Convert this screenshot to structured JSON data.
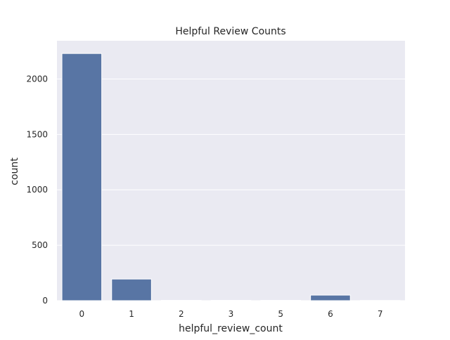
{
  "chart_data": {
    "type": "bar",
    "title": "Helpful Review Counts",
    "xlabel": "helpful_review_count",
    "ylabel": "count",
    "categories": [
      "0",
      "1",
      "2",
      "3",
      "5",
      "6",
      "7"
    ],
    "values": [
      2230,
      195,
      3,
      3,
      3,
      50,
      2
    ],
    "ylim": [
      0,
      2345
    ],
    "yticks": [
      0,
      500,
      1000,
      1500,
      2000
    ],
    "grid": true,
    "legend": "none",
    "colors": {
      "bar": "#5875a4",
      "plot_background": "#eaeaf2",
      "grid": "#ffffff"
    }
  }
}
